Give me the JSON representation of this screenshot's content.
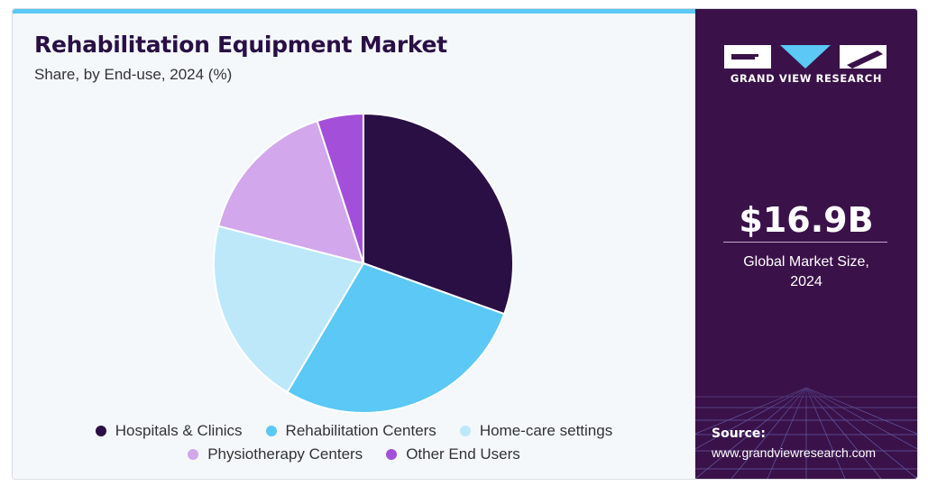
{
  "header": {
    "title": "Rehabilitation Equipment Market",
    "subtitle": "Share, by End-use, 2024 (%)"
  },
  "colors": {
    "accent_bar": "#5bc8f5",
    "title": "#2a0f45",
    "panel": "#3a1249"
  },
  "chart_data": {
    "type": "pie",
    "categories": [
      "Hospitals & Clinics",
      "Rehabilitation Centers",
      "Home-care settings",
      "Physiotherapy Centers",
      "Other End Users"
    ],
    "values": [
      30.5,
      28.0,
      20.5,
      16.0,
      5.0
    ],
    "colors": [
      "#2a0f45",
      "#5bc8f5",
      "#bde8fa",
      "#d2a7ec",
      "#a44fda"
    ],
    "start_angle_deg": 0,
    "direction": "clockwise",
    "title": "Rehabilitation Equipment Market",
    "legend_position": "bottom"
  },
  "legend": {
    "rows": [
      [
        {
          "label": "Hospitals & Clinics",
          "color": "#2a0f45"
        },
        {
          "label": "Rehabilitation Centers",
          "color": "#5bc8f5"
        },
        {
          "label": "Home-care settings",
          "color": "#bde8fa"
        }
      ],
      [
        {
          "label": "Physiotherapy Centers",
          "color": "#d2a7ec"
        },
        {
          "label": "Other End Users",
          "color": "#a44fda"
        }
      ]
    ]
  },
  "sidebar": {
    "brand": "GRAND VIEW RESEARCH",
    "logo_icon": "grand-view-research-logo",
    "stat_value": "$16.9B",
    "stat_label_line1": "Global Market Size,",
    "stat_label_line2": "2024",
    "source_label": "Source:",
    "source_url": "www.grandviewresearch.com"
  }
}
